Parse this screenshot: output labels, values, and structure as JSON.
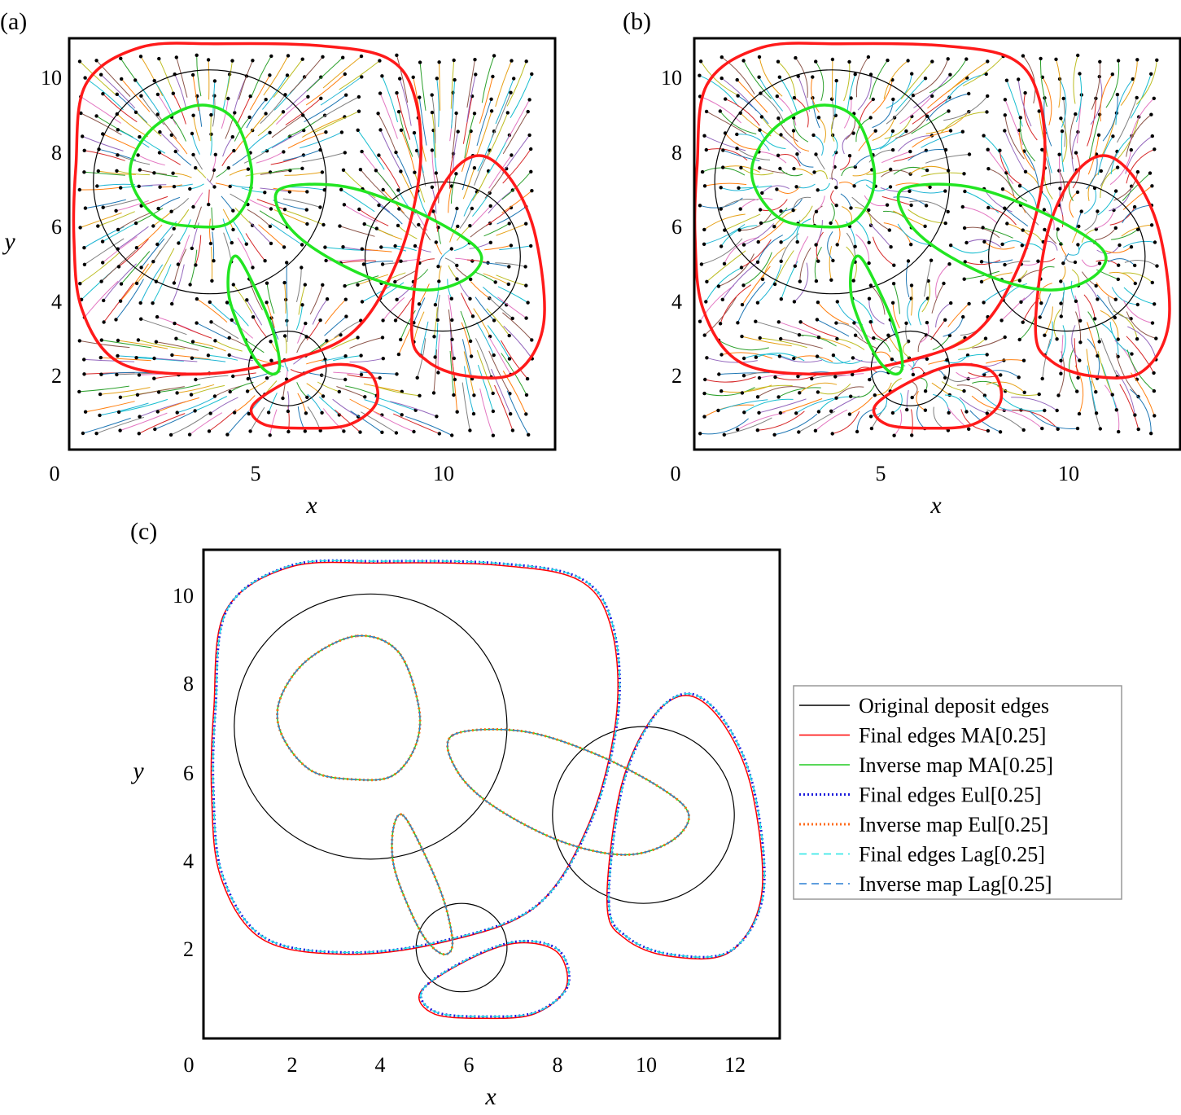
{
  "chart_data": [
    {
      "panel_label": "(a)",
      "type": "line",
      "xlabel": "x",
      "ylabel": "y",
      "xlim": [
        0,
        13
      ],
      "ylim": [
        0,
        11
      ],
      "xticks": [
        "0",
        "5",
        "10"
      ],
      "yticks": [
        "2",
        "4",
        "6",
        "8",
        "10"
      ],
      "trajectories": "dense particle pathlines toward deposit boundaries",
      "series": [
        {
          "id": "circles",
          "style": "black thin",
          "closed": true,
          "shapes": [
            {
              "type": "circle",
              "center": [
                4,
                7
              ],
              "radius": 3
            },
            {
              "type": "circle",
              "center": [
                10,
                5
              ],
              "radius": 2
            },
            {
              "type": "circle",
              "center": [
                6,
                2
              ],
              "radius": 1
            }
          ]
        },
        {
          "id": "final-edges",
          "style": "red thick",
          "closed": true,
          "curves": [
            [
              [
                0.55,
                7.4
              ],
              [
                0.8,
                9.6
              ],
              [
                2.2,
                10.6
              ],
              [
                4.2,
                10.7
              ],
              [
                6.8,
                10.65
              ],
              [
                8.6,
                10.3
              ],
              [
                9.3,
                9.2
              ],
              [
                9.4,
                7.2
              ],
              [
                8.8,
                4.8
              ],
              [
                7.6,
                2.9
              ],
              [
                5.5,
                2.1
              ],
              [
                3.4,
                1.85
              ],
              [
                1.6,
                2.2
              ],
              [
                0.7,
                3.6
              ],
              [
                0.5,
                5.5
              ]
            ],
            [
              [
                9.2,
                3
              ],
              [
                9.5,
                5.6
              ],
              [
                10.2,
                7.2
              ],
              [
                11,
                7.7
              ],
              [
                11.8,
                7
              ],
              [
                12.4,
                5.5
              ],
              [
                12.6,
                3.2
              ],
              [
                11.9,
                1.9
              ],
              [
                10.6,
                1.8
              ],
              [
                9.6,
                2.2
              ]
            ],
            [
              [
                5.1,
                1
              ],
              [
                6.1,
                1.7
              ],
              [
                7.2,
                2.1
              ],
              [
                8.1,
                1.9
              ],
              [
                8.3,
                1.1
              ],
              [
                7.6,
                0.5
              ],
              [
                6.5,
                0.4
              ],
              [
                5.4,
                0.5
              ]
            ]
          ]
        },
        {
          "id": "inverse-map",
          "style": "green thick",
          "closed": true,
          "curves": [
            [
              [
                3.7,
                9.05
              ],
              [
                4.6,
                8.7
              ],
              [
                5.05,
                7.5
              ],
              [
                5,
                6.6
              ],
              [
                4.5,
                5.9
              ],
              [
                3.7,
                5.8
              ],
              [
                2.7,
                6.0
              ],
              [
                2.05,
                6.8
              ],
              [
                2.0,
                7.6
              ],
              [
                2.6,
                8.5
              ]
            ],
            [
              [
                5.8,
                6.8
              ],
              [
                7.3,
                6.9
              ],
              [
                8.9,
                6.4
              ],
              [
                10.4,
                5.6
              ],
              [
                11,
                5
              ],
              [
                10.6,
                4.4
              ],
              [
                9.6,
                4.1
              ],
              [
                8.2,
                4.4
              ],
              [
                6.7,
                5.2
              ],
              [
                5.9,
                6
              ]
            ],
            [
              [
                4.7,
                5
              ],
              [
                5.1,
                4.3
              ],
              [
                5.6,
                3.1
              ],
              [
                5.8,
                2.1
              ],
              [
                5.6,
                1.85
              ],
              [
                5.2,
                2.2
              ],
              [
                4.8,
                3
              ],
              [
                4.5,
                3.9
              ],
              [
                4.5,
                4.7
              ]
            ]
          ]
        }
      ]
    },
    {
      "panel_label": "(b)",
      "type": "line",
      "xlabel": "x",
      "ylabel": "",
      "xlim": [
        0,
        13
      ],
      "ylim": [
        0,
        11
      ],
      "xticks": [
        "0",
        "5",
        "10"
      ],
      "yticks": [
        "2",
        "4",
        "6",
        "8",
        "10"
      ],
      "trajectories": "dense particle pathlines toward deposit boundaries",
      "series": [
        {
          "id": "circles",
          "style": "black thin",
          "closed": true,
          "shapes": [
            {
              "type": "circle",
              "center": [
                4,
                7
              ],
              "radius": 3
            },
            {
              "type": "circle",
              "center": [
                10,
                5
              ],
              "radius": 2
            },
            {
              "type": "circle",
              "center": [
                6,
                2
              ],
              "radius": 1
            }
          ]
        },
        {
          "id": "final-edges",
          "style": "red thick",
          "closed": true,
          "curves": [
            [
              [
                0.55,
                7.4
              ],
              [
                0.8,
                9.6
              ],
              [
                2.2,
                10.6
              ],
              [
                4.2,
                10.7
              ],
              [
                6.8,
                10.65
              ],
              [
                8.6,
                10.3
              ],
              [
                9.3,
                9.2
              ],
              [
                9.4,
                7.2
              ],
              [
                8.8,
                4.8
              ],
              [
                7.6,
                2.9
              ],
              [
                5.5,
                2.1
              ],
              [
                3.4,
                1.85
              ],
              [
                1.6,
                2.2
              ],
              [
                0.7,
                3.6
              ],
              [
                0.5,
                5.5
              ]
            ],
            [
              [
                9.2,
                3
              ],
              [
                9.5,
                5.6
              ],
              [
                10.2,
                7.2
              ],
              [
                11,
                7.7
              ],
              [
                11.8,
                7
              ],
              [
                12.4,
                5.5
              ],
              [
                12.6,
                3.2
              ],
              [
                11.9,
                1.9
              ],
              [
                10.6,
                1.8
              ],
              [
                9.6,
                2.2
              ]
            ],
            [
              [
                5.1,
                1
              ],
              [
                6.1,
                1.7
              ],
              [
                7.2,
                2.1
              ],
              [
                8.1,
                1.9
              ],
              [
                8.3,
                1.1
              ],
              [
                7.6,
                0.5
              ],
              [
                6.5,
                0.4
              ],
              [
                5.4,
                0.5
              ]
            ]
          ]
        },
        {
          "id": "inverse-map",
          "style": "green thick",
          "closed": true,
          "curves": [
            [
              [
                3.7,
                9.05
              ],
              [
                4.6,
                8.7
              ],
              [
                5.05,
                7.5
              ],
              [
                5,
                6.6
              ],
              [
                4.5,
                5.9
              ],
              [
                3.7,
                5.8
              ],
              [
                2.7,
                6.0
              ],
              [
                2.05,
                6.8
              ],
              [
                2.0,
                7.6
              ],
              [
                2.6,
                8.5
              ]
            ],
            [
              [
                5.8,
                6.8
              ],
              [
                7.3,
                6.9
              ],
              [
                8.9,
                6.4
              ],
              [
                10.4,
                5.6
              ],
              [
                11,
                5
              ],
              [
                10.6,
                4.4
              ],
              [
                9.6,
                4.1
              ],
              [
                8.2,
                4.4
              ],
              [
                6.7,
                5.2
              ],
              [
                5.9,
                6
              ]
            ],
            [
              [
                4.7,
                5
              ],
              [
                5.1,
                4.3
              ],
              [
                5.6,
                3.1
              ],
              [
                5.8,
                2.1
              ],
              [
                5.6,
                1.85
              ],
              [
                5.2,
                2.2
              ],
              [
                4.8,
                3
              ],
              [
                4.5,
                3.9
              ],
              [
                4.5,
                4.7
              ]
            ]
          ]
        }
      ]
    },
    {
      "panel_label": "(c)",
      "type": "line",
      "xlabel": "x",
      "ylabel": "y",
      "xlim": [
        0,
        13
      ],
      "ylim": [
        0,
        11
      ],
      "xticks": [
        "0",
        "2",
        "4",
        "6",
        "8",
        "10",
        "12"
      ],
      "yticks": [
        "2",
        "4",
        "6",
        "8",
        "10"
      ],
      "legend": [
        {
          "label": "Original deposit edges",
          "color": "#000000",
          "style": "solid"
        },
        {
          "label": "Final edges MA[0.25]",
          "color": "#ff0000",
          "style": "solid"
        },
        {
          "label": "Inverse map MA[0.25]",
          "color": "#22cc22",
          "style": "solid"
        },
        {
          "label": "Final edges Eul[0.25]",
          "color": "#1a1adc",
          "style": "dotted"
        },
        {
          "label": "Inverse map Eul[0.25]",
          "color": "#ff6a1a",
          "style": "dotted"
        },
        {
          "label": "Final edges Lag[0.25]",
          "color": "#22e5e5",
          "style": "dashed"
        },
        {
          "label": "Inverse map Lag[0.25]",
          "color": "#2a7fd4",
          "style": "dashed"
        }
      ],
      "legend_position": "right",
      "series": [
        {
          "id": "original",
          "closed": true,
          "shapes": [
            {
              "type": "circle",
              "center": [
                4,
                7
              ],
              "radius": 3
            },
            {
              "type": "circle",
              "center": [
                10,
                5
              ],
              "radius": 2
            },
            {
              "type": "circle",
              "center": [
                6,
                2
              ],
              "radius": 1
            }
          ]
        },
        {
          "id": "final-edges",
          "closed": true,
          "curves": [
            [
              [
                0.55,
                7.4
              ],
              [
                0.8,
                9.6
              ],
              [
                2.2,
                10.6
              ],
              [
                4.2,
                10.7
              ],
              [
                6.8,
                10.65
              ],
              [
                8.6,
                10.3
              ],
              [
                9.3,
                9.2
              ],
              [
                9.4,
                7.2
              ],
              [
                8.8,
                4.8
              ],
              [
                7.6,
                2.9
              ],
              [
                5.5,
                2.1
              ],
              [
                3.4,
                1.85
              ],
              [
                1.6,
                2.2
              ],
              [
                0.7,
                3.6
              ],
              [
                0.5,
                5.5
              ]
            ],
            [
              [
                9.2,
                3
              ],
              [
                9.5,
                5.6
              ],
              [
                10.2,
                7.2
              ],
              [
                11,
                7.7
              ],
              [
                11.8,
                7
              ],
              [
                12.4,
                5.5
              ],
              [
                12.6,
                3.2
              ],
              [
                11.9,
                1.9
              ],
              [
                10.6,
                1.8
              ],
              [
                9.6,
                2.2
              ]
            ],
            [
              [
                5.1,
                1
              ],
              [
                6.1,
                1.7
              ],
              [
                7.2,
                2.1
              ],
              [
                8.1,
                1.9
              ],
              [
                8.3,
                1.1
              ],
              [
                7.6,
                0.5
              ],
              [
                6.5,
                0.4
              ],
              [
                5.4,
                0.5
              ]
            ]
          ]
        },
        {
          "id": "inverse-map",
          "closed": true,
          "curves": [
            [
              [
                3.7,
                9.05
              ],
              [
                4.6,
                8.7
              ],
              [
                5.05,
                7.5
              ],
              [
                5,
                6.6
              ],
              [
                4.5,
                5.9
              ],
              [
                3.7,
                5.8
              ],
              [
                2.7,
                6.0
              ],
              [
                2.05,
                6.8
              ],
              [
                2.0,
                7.6
              ],
              [
                2.6,
                8.5
              ]
            ],
            [
              [
                5.8,
                6.8
              ],
              [
                7.3,
                6.9
              ],
              [
                8.9,
                6.4
              ],
              [
                10.4,
                5.6
              ],
              [
                11,
                5
              ],
              [
                10.6,
                4.4
              ],
              [
                9.6,
                4.1
              ],
              [
                8.2,
                4.4
              ],
              [
                6.7,
                5.2
              ],
              [
                5.9,
                6
              ]
            ],
            [
              [
                4.7,
                5
              ],
              [
                5.1,
                4.3
              ],
              [
                5.6,
                3.1
              ],
              [
                5.8,
                2.1
              ],
              [
                5.6,
                1.85
              ],
              [
                5.2,
                2.2
              ],
              [
                4.8,
                3
              ],
              [
                4.5,
                3.9
              ],
              [
                4.5,
                4.7
              ]
            ]
          ]
        }
      ]
    }
  ]
}
